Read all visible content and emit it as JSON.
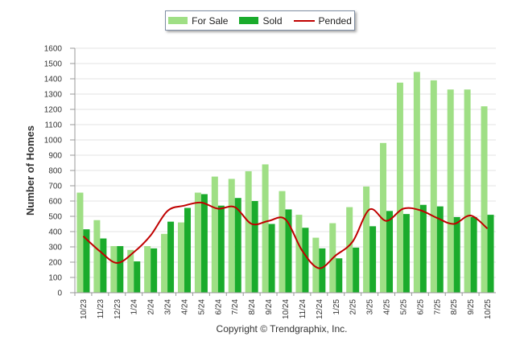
{
  "chart_data": {
    "type": "bar",
    "categories": [
      "10/23",
      "11/23",
      "12/23",
      "1/24",
      "2/24",
      "3/24",
      "4/24",
      "5/24",
      "6/24",
      "7/24",
      "8/24",
      "9/24",
      "10/24",
      "11/24",
      "12/24",
      "1/25",
      "2/25",
      "3/25",
      "4/25",
      "5/25",
      "6/25",
      "7/25",
      "8/25",
      "9/25",
      "10/25"
    ],
    "series": [
      {
        "name": "For Sale",
        "type": "bar",
        "color": "#9fdf85",
        "values": [
          655,
          475,
          305,
          280,
          305,
          385,
          460,
          655,
          760,
          745,
          795,
          840,
          665,
          510,
          360,
          455,
          560,
          695,
          980,
          1375,
          1445,
          1390,
          1330,
          1330,
          1220
        ]
      },
      {
        "name": "Sold",
        "type": "bar",
        "color": "#1aab2c",
        "values": [
          415,
          355,
          305,
          205,
          290,
          465,
          555,
          645,
          570,
          620,
          600,
          450,
          545,
          425,
          290,
          225,
          295,
          435,
          535,
          515,
          575,
          565,
          495,
          495,
          510
        ]
      },
      {
        "name": "Pended",
        "type": "line",
        "color": "#c00000",
        "values": [
          370,
          270,
          195,
          265,
          375,
          535,
          570,
          590,
          550,
          560,
          450,
          470,
          480,
          275,
          160,
          245,
          335,
          545,
          470,
          550,
          540,
          490,
          450,
          505,
          420
        ]
      }
    ],
    "ylim": [
      0,
      1600
    ],
    "yticks": [
      "0",
      "100",
      "200",
      "300",
      "400",
      "500",
      "600",
      "700",
      "800",
      "900",
      "1000",
      "1100",
      "1200",
      "1300",
      "1400",
      "1500",
      "1600"
    ],
    "ylabel": "Number of Homes",
    "xlabel": "",
    "grid": true,
    "legend": "top"
  },
  "footer": {
    "copyright": "Copyright © Trendgraphix, Inc."
  }
}
